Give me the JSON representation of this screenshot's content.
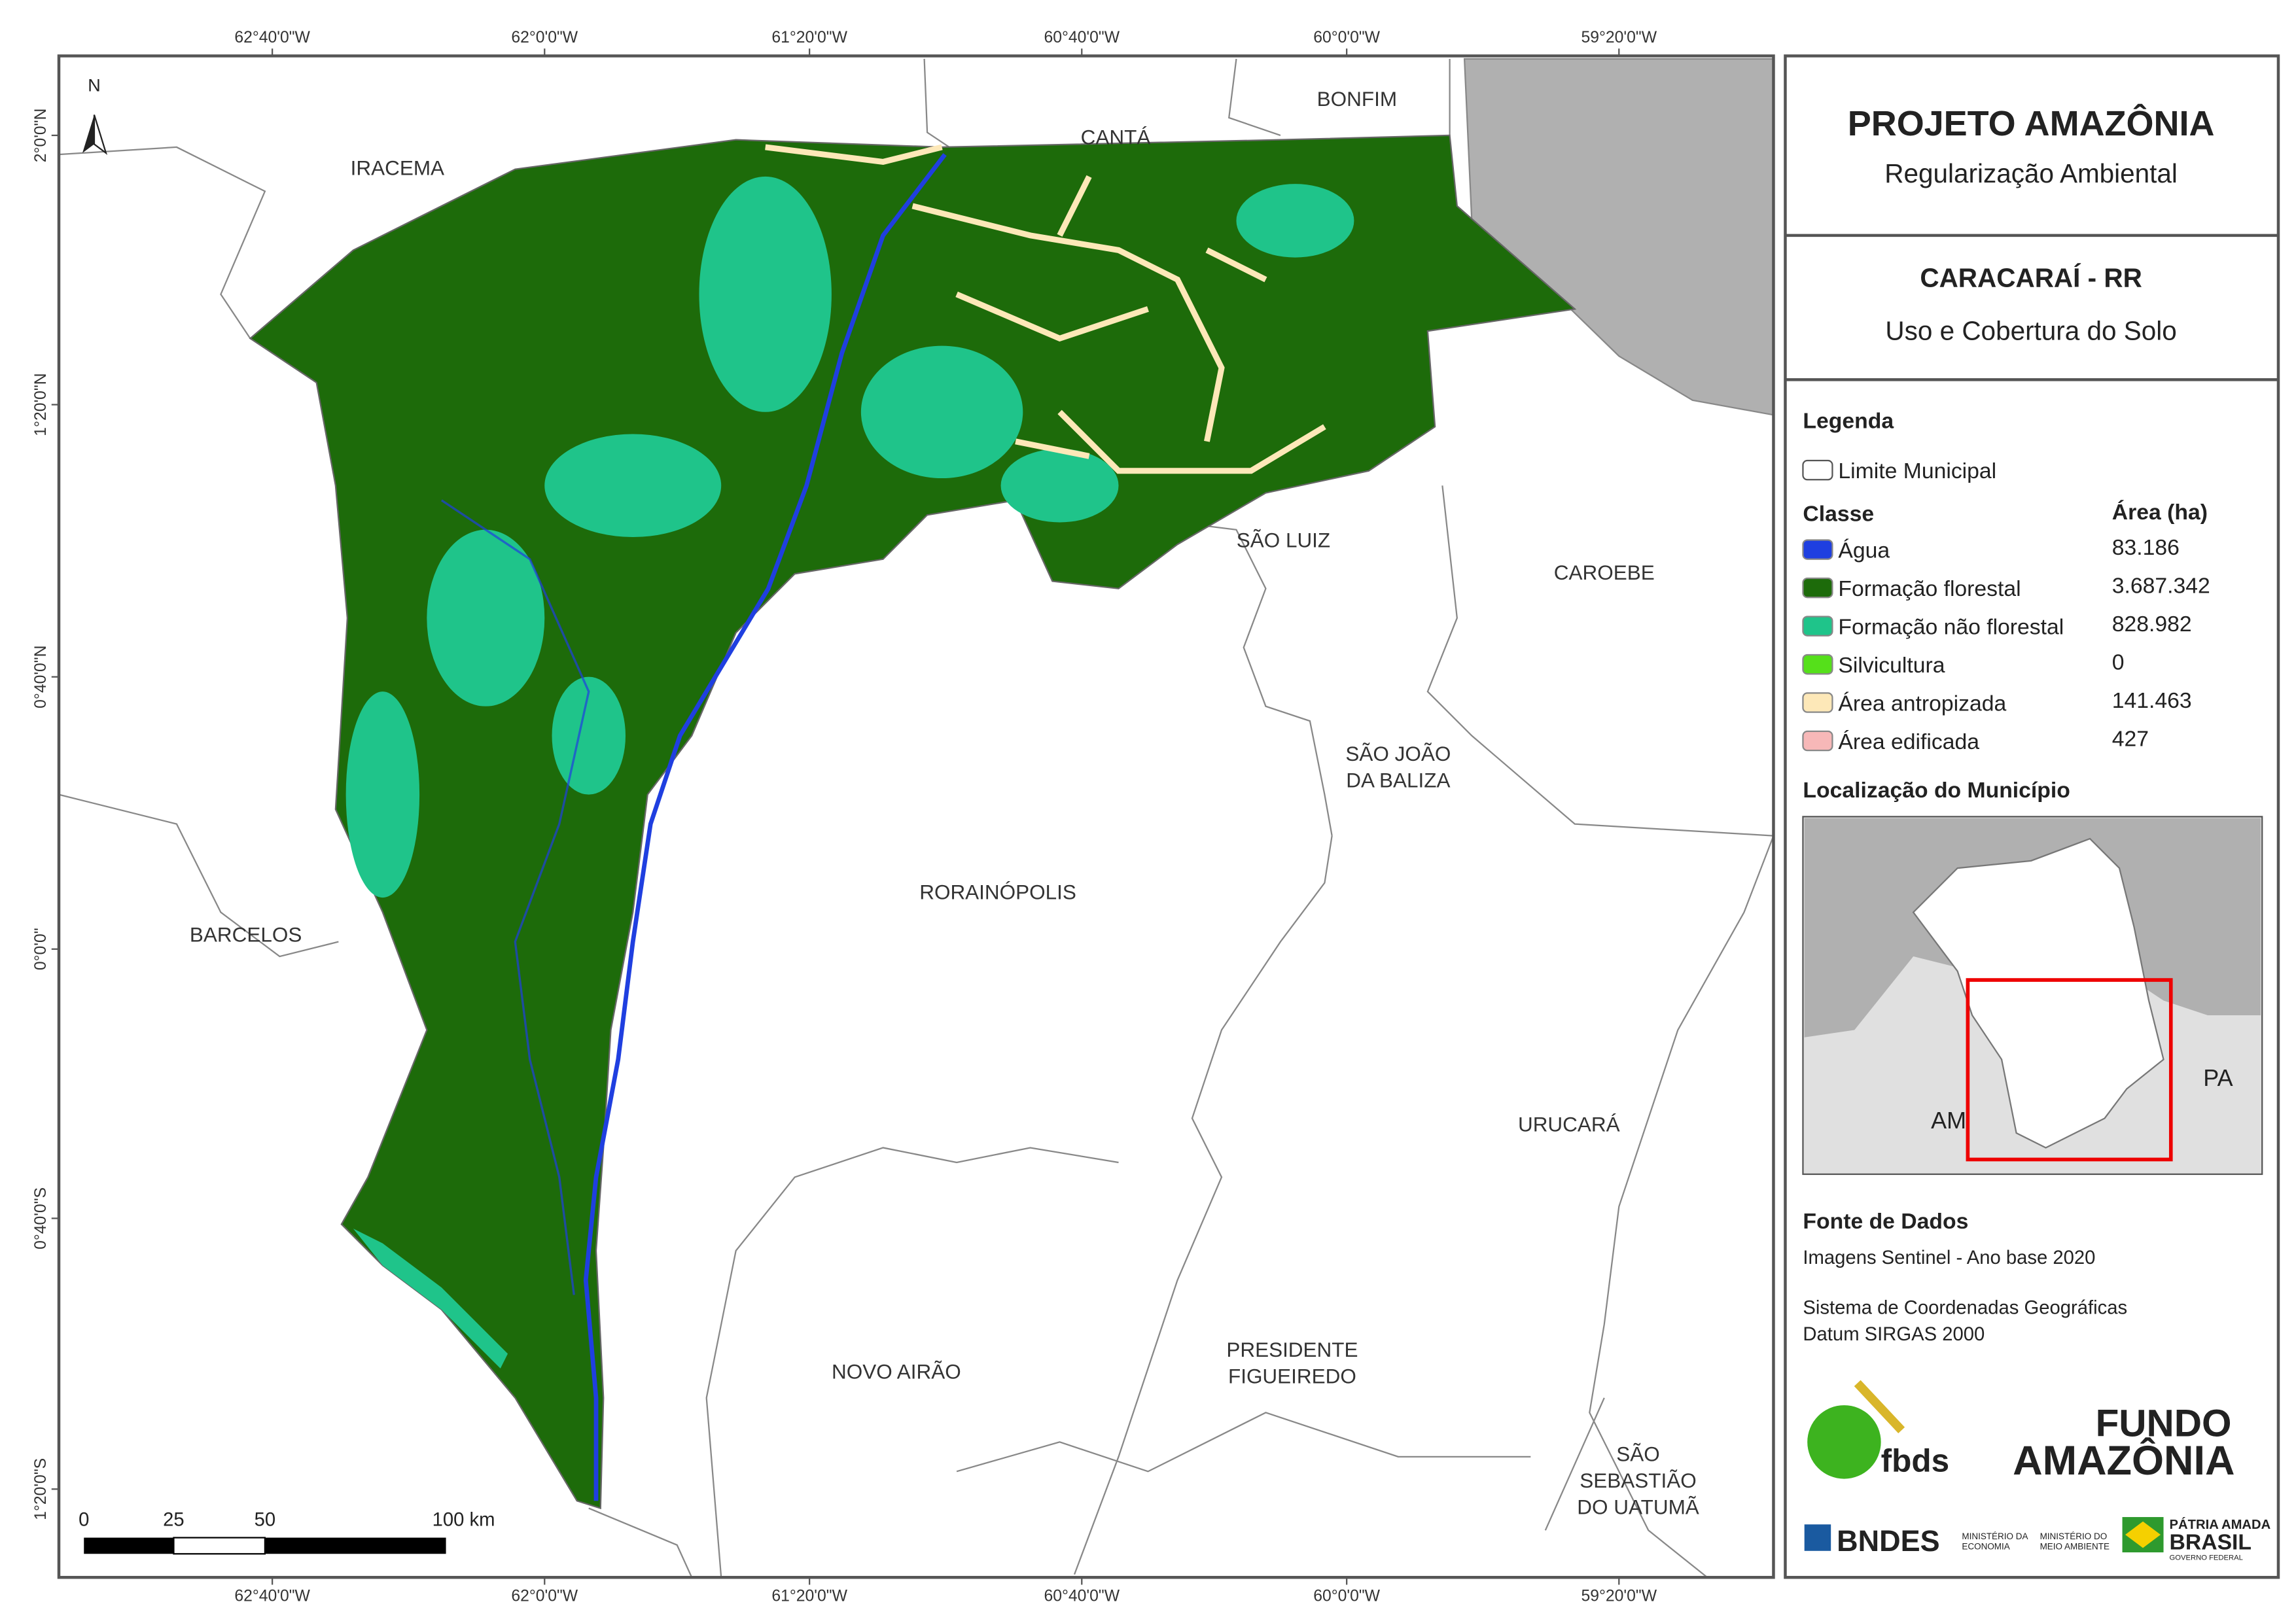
{
  "map_frame": {
    "top_ticks": [
      "62°40'0\"W",
      "62°0'0\"W",
      "61°20'0\"W",
      "60°40'0\"W",
      "60°0'0\"W",
      "59°20'0\"W"
    ],
    "bottom_ticks": [
      "62°40'0\"W",
      "62°0'0\"W",
      "61°20'0\"W",
      "60°40'0\"W",
      "60°0'0\"W",
      "59°20'0\"W"
    ],
    "left_ticks": [
      "2°0'0\"N",
      "1°20'0\"N",
      "0°40'0\"N",
      "0°0'0\"",
      "0°40'0\"S",
      "1°20'0\"S"
    ],
    "north": "N"
  },
  "municipalities": [
    {
      "lines": [
        "IRACEMA"
      ]
    },
    {
      "lines": [
        "CANTÁ"
      ]
    },
    {
      "lines": [
        "BONFIM"
      ]
    },
    {
      "lines": [
        "SÃO LUIZ"
      ]
    },
    {
      "lines": [
        "CAROEBE"
      ]
    },
    {
      "lines": [
        "SÃO JOÃO",
        "DA BALIZA"
      ]
    },
    {
      "lines": [
        "RORAINÓPOLIS"
      ]
    },
    {
      "lines": [
        "BARCELOS"
      ]
    },
    {
      "lines": [
        "URUCARÁ"
      ]
    },
    {
      "lines": [
        "NOVO AIRÃO"
      ]
    },
    {
      "lines": [
        "PRESIDENTE",
        "FIGUEIREDO"
      ]
    },
    {
      "lines": [
        "SÃO",
        "SEBASTIÃO",
        "DO UATUMÃ"
      ]
    }
  ],
  "scale_bar": {
    "labels": [
      "0",
      "25",
      "50",
      "100 km"
    ]
  },
  "header": {
    "title": "PROJETO AMAZÔNIA",
    "subtitle": "Regularização Ambiental"
  },
  "map_title": {
    "municipality": "CARACARAÍ - RR",
    "theme": "Uso e Cobertura do Solo"
  },
  "legend": {
    "title": "Legenda",
    "boundary": "Limite Municipal",
    "class_header": "Classe",
    "area_header": "Área (ha)",
    "classes": [
      {
        "name": "Água",
        "area": "83.186",
        "color": "#1f3fe0"
      },
      {
        "name": "Formação florestal",
        "area": "3.687.342",
        "color": "#1d6b0a"
      },
      {
        "name": "Formação não florestal",
        "area": "828.982",
        "color": "#1fc48a"
      },
      {
        "name": "Silvicultura",
        "area": "0",
        "color": "#55e01a"
      },
      {
        "name": "Área antropizada",
        "area": "141.463",
        "color": "#fde8b8"
      },
      {
        "name": "Área edificada",
        "area": "427",
        "color": "#f7b8b8"
      }
    ]
  },
  "location": {
    "title": "Localização do Município",
    "labels": [
      "AM",
      "PA"
    ]
  },
  "sources": {
    "title": "Fonte de Dados",
    "lines": [
      "Imagens Sentinel - Ano base 2020",
      "Sistema de Coordenadas Geográficas",
      "Datum SIRGAS 2000"
    ]
  },
  "logos": {
    "fbds": "fbds",
    "fundo": [
      "FUNDO",
      "AMAZÔNIA"
    ],
    "bndes": "BNDES",
    "ministries": [
      "MINISTÉRIO DA",
      "ECONOMIA",
      "MINISTÉRIO DO",
      "MEIO AMBIENTE"
    ],
    "brasil": [
      "PÁTRIA AMADA",
      "BRASIL",
      "GOVERNO FEDERAL"
    ]
  }
}
